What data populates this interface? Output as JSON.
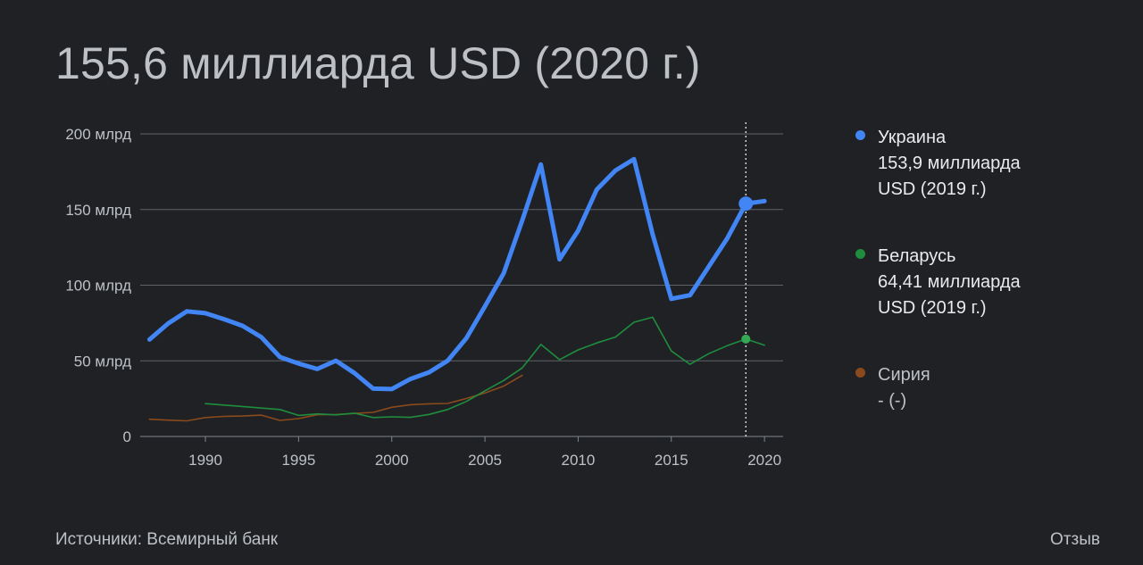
{
  "headline": "155,6 миллиарда USD (2020 г.)",
  "legend": [
    {
      "name": "Украина",
      "value_line1": "153,9 миллиарда",
      "value_line2": "USD (2019 г.)",
      "color": "#4285f4"
    },
    {
      "name": "Беларусь",
      "value_line1": "64,41 миллиарда",
      "value_line2": "USD (2019 г.)",
      "color": "#1e8e3e"
    },
    {
      "name": "Сирия",
      "value_line1": "- (-)",
      "value_line2": "",
      "color": "#8a4a1c"
    }
  ],
  "footer": {
    "source": "Источники: Всемирный банк",
    "feedback": "Отзыв"
  },
  "chart_data": {
    "type": "line",
    "y_ticks": [
      {
        "value": 0,
        "label": "0"
      },
      {
        "value": 50,
        "label": "50 млрд"
      },
      {
        "value": 100,
        "label": "100 млрд"
      },
      {
        "value": 150,
        "label": "150 млрд"
      },
      {
        "value": 200,
        "label": "200 млрд"
      }
    ],
    "x_ticks": [
      1990,
      1995,
      2000,
      2005,
      2010,
      2015,
      2020
    ],
    "xlim": [
      1986.5,
      2021
    ],
    "ylim": [
      0,
      200
    ],
    "highlight_year": 2019,
    "grid": true,
    "series": [
      {
        "name": "Украина",
        "color": "#4285f4",
        "x": [
          1987,
          1988,
          1989,
          1990,
          1991,
          1992,
          1993,
          1994,
          1995,
          1996,
          1997,
          1998,
          1999,
          2000,
          2001,
          2002,
          2003,
          2004,
          2005,
          2006,
          2007,
          2008,
          2009,
          2010,
          2011,
          2012,
          2013,
          2014,
          2015,
          2016,
          2017,
          2018,
          2019,
          2020
        ],
        "y": [
          64.1,
          74.7,
          82.7,
          81.5,
          77.5,
          73.1,
          65.6,
          52.5,
          48.2,
          44.6,
          50.1,
          41.9,
          31.6,
          31.3,
          38.0,
          42.4,
          50.1,
          64.9,
          86.1,
          107.8,
          142.7,
          179.8,
          117.1,
          136.0,
          163.2,
          175.8,
          183.3,
          133.5,
          91.0,
          93.4,
          112.1,
          130.9,
          153.9,
          155.6
        ]
      },
      {
        "name": "Беларусь",
        "color": "#1e8e3e",
        "x": [
          1990,
          1994,
          1995,
          1996,
          1997,
          1998,
          1999,
          2000,
          2001,
          2002,
          2003,
          2004,
          2005,
          2006,
          2007,
          2008,
          2009,
          2010,
          2011,
          2012,
          2013,
          2014,
          2015,
          2016,
          2017,
          2018,
          2019,
          2020
        ],
        "y": [
          21.7,
          17.8,
          13.9,
          14.9,
          14.3,
          15.4,
          12.5,
          13.0,
          12.6,
          14.6,
          17.8,
          23.1,
          30.2,
          37.0,
          45.3,
          60.8,
          50.8,
          57.2,
          61.8,
          65.7,
          75.5,
          78.8,
          56.5,
          47.7,
          54.7,
          60.0,
          64.4,
          60.3
        ]
      },
      {
        "name": "Сирия",
        "color": "#8a4a1c",
        "x": [
          1987,
          1988,
          1989,
          1990,
          1991,
          1992,
          1993,
          1994,
          1995,
          1996,
          1997,
          1998,
          1999,
          2000,
          2001,
          2002,
          2003,
          2004,
          2005,
          2006,
          2007
        ],
        "y": [
          11.4,
          10.8,
          10.3,
          12.5,
          13.3,
          13.5,
          14.1,
          10.6,
          11.8,
          14.4,
          14.5,
          15.2,
          15.9,
          19.3,
          21.0,
          21.6,
          21.8,
          25.1,
          28.8,
          33.3,
          40.4
        ]
      }
    ]
  }
}
